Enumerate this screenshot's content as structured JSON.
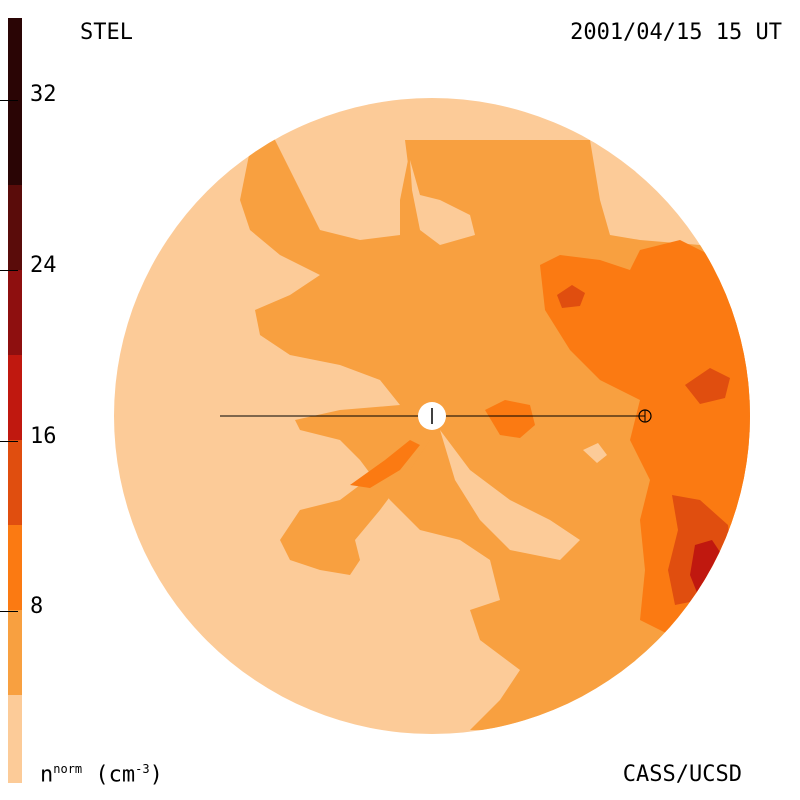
{
  "header": {
    "left_label": "STEL",
    "right_label": "2001/04/15 15 UT"
  },
  "footer": {
    "credit": "CASS/UCSD",
    "unit_base": "n",
    "unit_super": "norm",
    "unit_paren": "(cm",
    "unit_exp": "-3",
    "unit_close": ")"
  },
  "colorbar": {
    "segments": [
      "#2a0505",
      "#5a0c0a",
      "#8e0f0f",
      "#c0180f",
      "#e04e0f",
      "#fb7a12",
      "#f8a040",
      "#fccb98"
    ],
    "ticks": [
      "32",
      "24",
      "16",
      "8"
    ]
  },
  "map_colors": {
    "bg": "#fccb98",
    "c1": "#f8a040",
    "c2": "#fb7a12",
    "c3": "#e04e0f",
    "c4": "#c0180f"
  }
}
